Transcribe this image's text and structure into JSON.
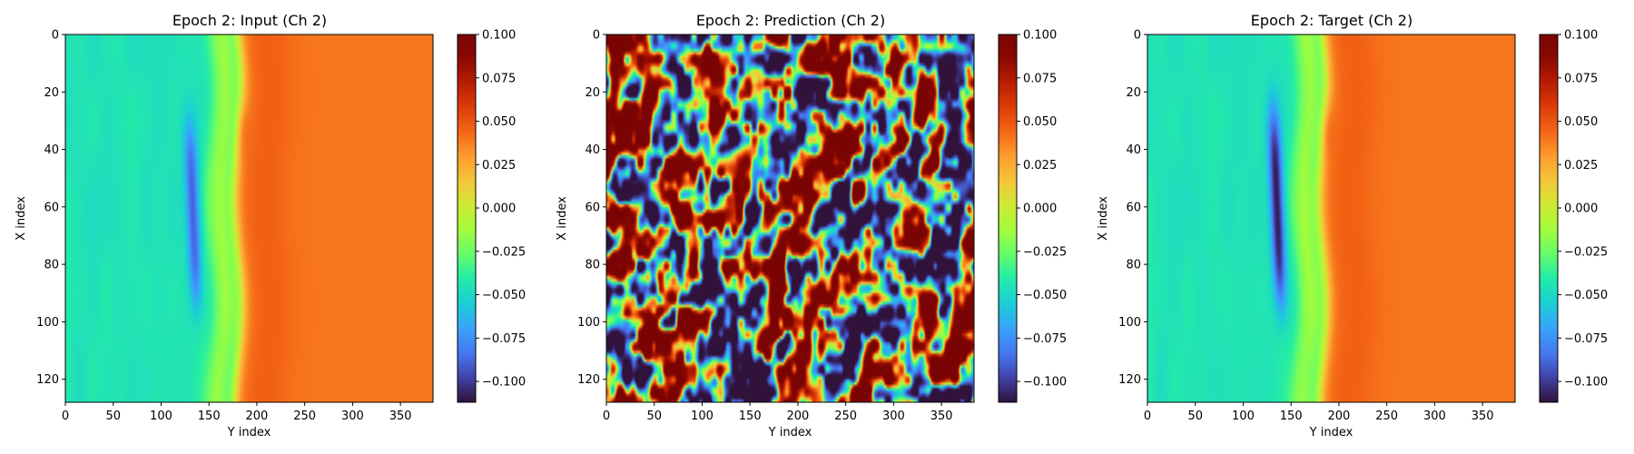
{
  "chart_data": [
    {
      "type": "heatmap",
      "title": "Epoch 2: Input (Ch 2)",
      "xlabel": "Y index",
      "ylabel": "X index",
      "xlim": [
        0,
        384
      ],
      "ylim": [
        128,
        0
      ],
      "xticks": [
        0,
        50,
        100,
        150,
        200,
        250,
        300,
        350
      ],
      "yticks": [
        0,
        20,
        40,
        60,
        80,
        100,
        120
      ],
      "colormap": "turbo",
      "colorbar": {
        "range": [
          -0.112,
          0.1
        ],
        "ticks": [
          "0.100",
          "0.075",
          "0.050",
          "0.025",
          "0.000",
          "−0.025",
          "−0.050",
          "−0.075",
          "−0.100"
        ]
      },
      "field_kind": "front",
      "field": {
        "front_position_y": 180,
        "left_value": -0.045,
        "right_value": 0.04,
        "peak_hot": {
          "x": 30,
          "y": 178,
          "value": 0.085
        },
        "cold_band": {
          "y": 133,
          "x_range": [
            30,
            95
          ],
          "value": -0.09
        }
      }
    },
    {
      "type": "heatmap",
      "title": "Epoch 2: Prediction (Ch 2)",
      "xlabel": "Y index",
      "ylabel": "X index",
      "xlim": [
        0,
        384
      ],
      "ylim": [
        128,
        0
      ],
      "xticks": [
        0,
        50,
        100,
        150,
        200,
        250,
        300,
        350
      ],
      "yticks": [
        0,
        20,
        40,
        60,
        80,
        100,
        120
      ],
      "colormap": "turbo",
      "colorbar": {
        "range": [
          -0.112,
          0.1
        ],
        "ticks": [
          "0.100",
          "0.075",
          "0.050",
          "0.025",
          "0.000",
          "−0.025",
          "−0.050",
          "−0.075",
          "−0.100"
        ]
      },
      "field_kind": "noise",
      "field": {
        "low_value": -0.112,
        "high_value": 0.1
      }
    },
    {
      "type": "heatmap",
      "title": "Epoch 2: Target (Ch 2)",
      "xlabel": "Y index",
      "ylabel": "X index",
      "xlim": [
        0,
        384
      ],
      "ylim": [
        128,
        0
      ],
      "xticks": [
        0,
        50,
        100,
        150,
        200,
        250,
        300,
        350
      ],
      "yticks": [
        0,
        20,
        40,
        60,
        80,
        100,
        120
      ],
      "colormap": "turbo",
      "colorbar": {
        "range": [
          -0.112,
          0.1
        ],
        "ticks": [
          "0.100",
          "0.075",
          "0.050",
          "0.025",
          "0.000",
          "−0.025",
          "−0.050",
          "−0.075",
          "−0.100"
        ]
      },
      "field_kind": "front",
      "field": {
        "front_position_y": 183,
        "left_value": -0.045,
        "right_value": 0.04,
        "peak_hot": {
          "x": 30,
          "y": 181,
          "value": 0.09
        },
        "cold_band": {
          "y": 135,
          "x_range": [
            25,
            95
          ],
          "value": -0.11
        }
      }
    }
  ]
}
